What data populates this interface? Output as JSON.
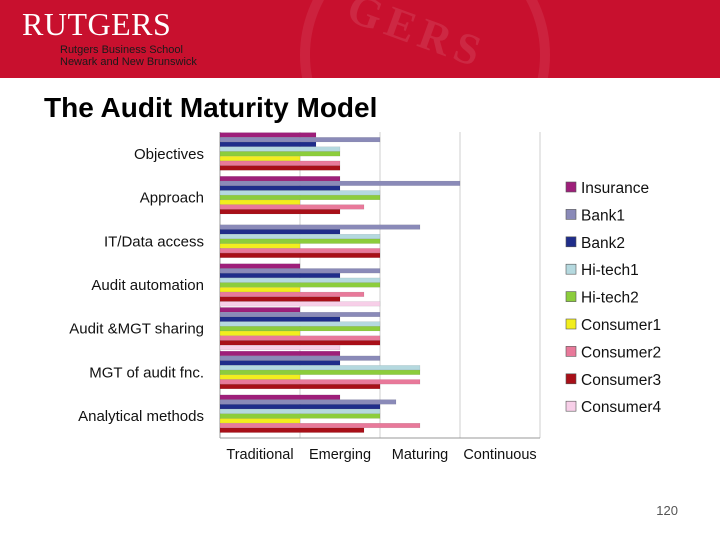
{
  "header": {
    "brand": "RUTGERS",
    "school_line1": "Rutgers Business School",
    "school_line2": "Newark and New Brunswick"
  },
  "slide": {
    "title": "The Audit Maturity Model",
    "page_number": "120"
  },
  "colors": {
    "banner": "#c8102e"
  },
  "chart_data": {
    "type": "bar",
    "orientation": "horizontal",
    "categories": [
      "Objectives",
      "Approach",
      "IT/Data access",
      "Audit automation",
      "Audit &MGT sharing",
      "MGT of audit fnc.",
      "Analytical methods"
    ],
    "x_tick_labels": [
      "Traditional",
      "Emerging",
      "Maturing",
      "Continuous"
    ],
    "xlim": [
      0,
      4
    ],
    "legend_position": "right",
    "series": [
      {
        "name": "Insurance",
        "color": "#9e1f7a",
        "values": [
          1.2,
          1.5,
          0.0,
          1.0,
          1.0,
          1.5,
          1.5
        ]
      },
      {
        "name": "Bank1",
        "color": "#8a8ab8",
        "values": [
          2.0,
          3.0,
          2.5,
          2.0,
          2.0,
          2.0,
          2.2
        ]
      },
      {
        "name": "Bank2",
        "color": "#1f2d8a",
        "values": [
          1.2,
          1.5,
          1.5,
          1.5,
          1.5,
          1.5,
          2.0
        ]
      },
      {
        "name": "Hi-tech1",
        "color": "#b5d9df",
        "values": [
          1.5,
          2.0,
          2.0,
          2.0,
          2.0,
          2.5,
          2.0
        ]
      },
      {
        "name": "Hi-tech2",
        "color": "#8ccd3c",
        "values": [
          1.5,
          2.0,
          2.0,
          2.0,
          2.0,
          2.5,
          2.0
        ]
      },
      {
        "name": "Consumer1",
        "color": "#f2ee1e",
        "values": [
          1.0,
          1.0,
          1.0,
          1.0,
          1.0,
          1.0,
          1.0
        ]
      },
      {
        "name": "Consumer2",
        "color": "#e8799a",
        "values": [
          1.5,
          1.8,
          2.0,
          1.8,
          2.0,
          2.5,
          2.5
        ]
      },
      {
        "name": "Consumer3",
        "color": "#a80f18",
        "values": [
          1.5,
          1.5,
          2.0,
          1.5,
          2.0,
          2.0,
          1.8
        ]
      },
      {
        "name": "Consumer4",
        "color": "#f7cfe8",
        "values": [
          0.0,
          0.0,
          0.0,
          2.0,
          1.5,
          0.0,
          0.0
        ]
      }
    ]
  }
}
